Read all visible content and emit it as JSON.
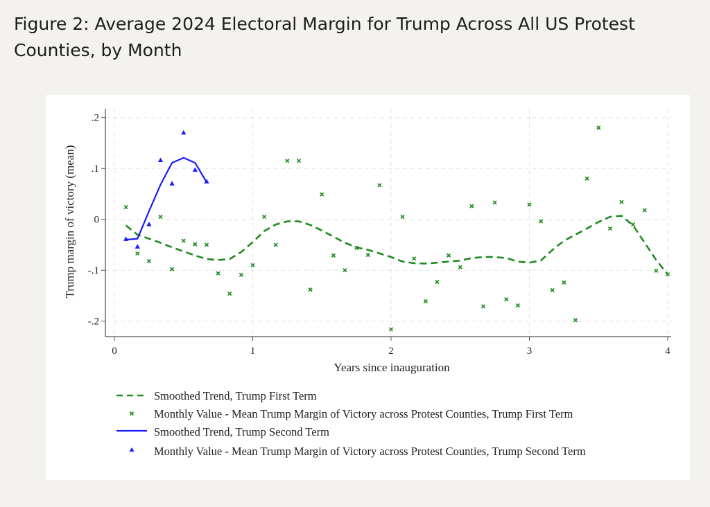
{
  "title": "Figure 2: Average 2024 Electoral Margin for Trump Across All US Protest Counties, by Month",
  "chart_data": {
    "type": "line",
    "title": "",
    "xlabel": "Years since inauguration",
    "ylabel": "Trump margin of victory (mean)",
    "xlim": [
      0,
      4
    ],
    "ylim": [
      -0.2,
      0.2
    ],
    "xticks": [
      "0",
      "1",
      "2",
      "3",
      "4"
    ],
    "yticks": [
      ".2",
      ".1",
      "0",
      "-.1",
      "-.2"
    ],
    "grid": true,
    "legend_position": "bottom",
    "colors": {
      "first_term": "#1f8a1f",
      "second_term": "#1a1aff"
    },
    "series": [
      {
        "name": "Smoothed Trend, Trump First Term",
        "style": "dashed-line",
        "color": "#1f8a1f",
        "x_months": [
          1,
          2,
          3,
          4,
          5,
          6,
          7,
          8,
          9,
          10,
          11,
          12,
          13,
          14,
          15,
          16,
          17,
          18,
          19,
          20,
          21,
          22,
          23,
          24,
          25,
          26,
          27,
          28,
          29,
          30,
          31,
          32,
          33,
          34,
          35,
          36,
          37,
          38,
          39,
          40,
          41,
          42,
          43,
          44,
          45,
          46,
          47,
          48
        ],
        "values": [
          -0.012,
          -0.03,
          -0.038,
          -0.046,
          -0.055,
          -0.063,
          -0.071,
          -0.078,
          -0.08,
          -0.078,
          -0.064,
          -0.045,
          -0.023,
          -0.01,
          -0.004,
          -0.004,
          -0.011,
          -0.022,
          -0.034,
          -0.046,
          -0.055,
          -0.06,
          -0.067,
          -0.074,
          -0.083,
          -0.086,
          -0.087,
          -0.085,
          -0.083,
          -0.081,
          -0.076,
          -0.074,
          -0.074,
          -0.076,
          -0.083,
          -0.085,
          -0.081,
          -0.06,
          -0.042,
          -0.03,
          -0.018,
          -0.005,
          0.005,
          0.007,
          -0.012,
          -0.046,
          -0.08,
          -0.108
        ]
      },
      {
        "name": "Monthly Value - Mean Trump Margin of Victory across Protest Counties, Trump First Term",
        "style": "x-marker",
        "color": "#1f8a1f",
        "x_months": [
          1,
          2,
          3,
          4,
          5,
          6,
          7,
          8,
          9,
          10,
          11,
          12,
          13,
          14,
          15,
          16,
          17,
          18,
          19,
          20,
          21,
          22,
          23,
          24,
          25,
          26,
          27,
          28,
          29,
          30,
          31,
          32,
          33,
          34,
          35,
          36,
          37,
          38,
          39,
          40,
          41,
          42,
          43,
          44,
          45,
          46,
          47,
          48
        ],
        "values": [
          0.024,
          -0.067,
          -0.082,
          0.005,
          -0.098,
          -0.042,
          -0.049,
          -0.05,
          -0.106,
          -0.146,
          -0.109,
          -0.09,
          0.005,
          -0.05,
          0.115,
          0.115,
          -0.138,
          0.049,
          -0.071,
          -0.1,
          -0.056,
          -0.07,
          0.067,
          -0.216,
          0.005,
          -0.077,
          -0.161,
          -0.123,
          -0.071,
          -0.094,
          0.026,
          -0.171,
          0.033,
          -0.157,
          -0.169,
          0.029,
          -0.004,
          -0.139,
          -0.124,
          -0.198,
          0.08,
          0.18,
          -0.018,
          0.034,
          -0.01,
          0.018,
          -0.101,
          -0.108
        ]
      },
      {
        "name": "Smoothed Trend, Trump Second Term",
        "style": "solid-line",
        "color": "#1a1aff",
        "x_months": [
          1,
          2,
          3,
          4,
          5,
          6,
          7,
          8
        ],
        "values": [
          -0.04,
          -0.038,
          0.016,
          0.068,
          0.111,
          0.121,
          0.111,
          0.073
        ]
      },
      {
        "name": "Monthly Value - Mean Trump Margin of Victory across Protest Counties, Trump Second Term",
        "style": "triangle-marker",
        "color": "#1a1aff",
        "x_months": [
          1,
          2,
          3,
          4,
          5,
          6,
          7,
          8
        ],
        "values": [
          -0.039,
          -0.054,
          -0.01,
          0.116,
          0.07,
          0.17,
          0.097,
          0.074
        ]
      }
    ]
  }
}
